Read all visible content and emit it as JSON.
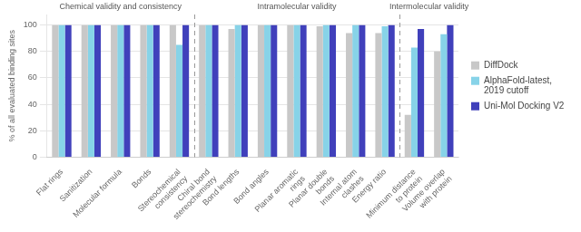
{
  "chart_data": {
    "type": "bar",
    "categories": [
      "Flat rings",
      "Sanitization",
      "Molecular formula",
      "Bonds",
      "Stereochemical\nconsistency",
      "Chiral bond\nstereochemistry",
      "Bond lengths",
      "Bond angles",
      "Planar aromatic\nrings",
      "Planar double\nbonds",
      "Internal atom\nclashes",
      "Energy ratio",
      "Minimum distance\nto protein",
      "Volume overlap\nwith protein"
    ],
    "series": [
      {
        "name": "DiffDock",
        "color": "#c8c8c8",
        "values": [
          100,
          100,
          100,
          100,
          100,
          100,
          97,
          100,
          100,
          99,
          94,
          94,
          32,
          80
        ]
      },
      {
        "name": "AlphaFold-latest,\n2019 cutoff",
        "color": "#87d3e8",
        "values": [
          100,
          100,
          100,
          100,
          85,
          100,
          100,
          100,
          100,
          100,
          100,
          99,
          83,
          93
        ]
      },
      {
        "name": "Uni-Mol Docking V2",
        "color": "#4040bb",
        "values": [
          100,
          100,
          100,
          100,
          100,
          100,
          100,
          100,
          100,
          100,
          100,
          100,
          97,
          100
        ]
      }
    ],
    "ylabel": "% of all evaluated binding sites",
    "ylim": [
      0,
      108
    ],
    "yticks": [
      0,
      20,
      40,
      60,
      80,
      100
    ],
    "grid": "y",
    "legend": "right",
    "annotations": [
      {
        "text": "Chemical validity and consistency",
        "x_start": -0.5,
        "x_end": 4.5
      },
      {
        "text": "Intramolecular validity",
        "x_start": 4.5,
        "x_end": 11.5
      },
      {
        "text": "Intermolecular validity",
        "x_start": 11.5,
        "x_end": 13.5
      }
    ]
  }
}
